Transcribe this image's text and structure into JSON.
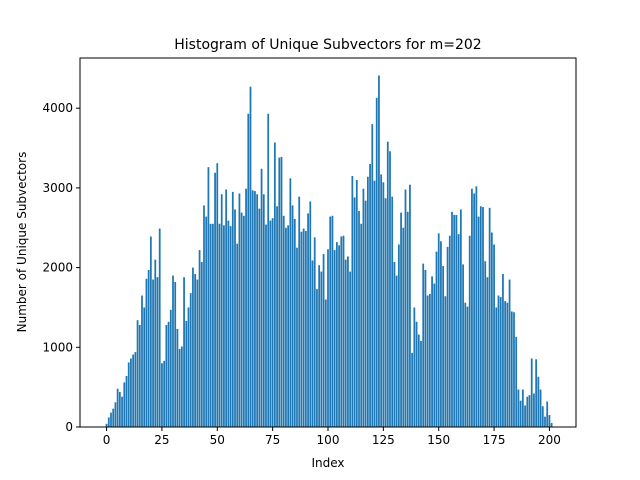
{
  "chart_data": {
    "type": "bar",
    "title": "Histogram of Unique Subvectors for m=202",
    "xlabel": "Index",
    "ylabel": "Number of Unique Subvectors",
    "xlim": [
      -12,
      212
    ],
    "ylim": [
      0,
      4630
    ],
    "xticks": [
      0,
      25,
      50,
      75,
      100,
      125,
      150,
      175,
      200
    ],
    "yticks": [
      0,
      1000,
      2000,
      3000,
      4000
    ],
    "grid": false,
    "legend": "none",
    "bar_color": "#1f77b4",
    "x_start": 0,
    "values": [
      40,
      120,
      180,
      230,
      310,
      480,
      440,
      380,
      560,
      640,
      810,
      860,
      910,
      940,
      1340,
      1280,
      1650,
      1500,
      1860,
      1970,
      2390,
      1850,
      2100,
      1880,
      2490,
      800,
      830,
      1280,
      1320,
      1470,
      1900,
      1820,
      1230,
      980,
      1010,
      1880,
      1330,
      1500,
      1680,
      2000,
      1920,
      1850,
      2220,
      2070,
      2780,
      2640,
      3260,
      2550,
      2550,
      3190,
      3310,
      2550,
      2920,
      2530,
      2980,
      2590,
      2520,
      2950,
      2730,
      2300,
      2930,
      2690,
      2650,
      2990,
      3930,
      4270,
      2970,
      2960,
      2920,
      2740,
      3240,
      2920,
      2540,
      3930,
      2590,
      2620,
      3570,
      2770,
      3380,
      3390,
      2650,
      2500,
      2530,
      3120,
      2780,
      2610,
      2250,
      2890,
      2450,
      2490,
      2460,
      2680,
      2830,
      2090,
      2380,
      1730,
      2030,
      1950,
      2170,
      1600,
      2230,
      2640,
      2650,
      2220,
      2320,
      2280,
      2390,
      2400,
      2100,
      2140,
      1950,
      3150,
      2880,
      3100,
      2710,
      2550,
      2990,
      2840,
      3140,
      3300,
      3800,
      3090,
      4130,
      4410,
      3170,
      3070,
      2870,
      3580,
      3460,
      2890,
      2070,
      1900,
      2290,
      2690,
      2500,
      2980,
      2700,
      3040,
      930,
      1500,
      1320,
      1160,
      1080,
      2050,
      1970,
      1650,
      1670,
      1890,
      1800,
      2200,
      2430,
      2330,
      2020,
      1640,
      2260,
      2400,
      2700,
      2660,
      2660,
      2420,
      2730,
      2040,
      1560,
      1510,
      2400,
      2990,
      2930,
      3020,
      2640,
      2770,
      2760,
      2080,
      1880,
      2750,
      2440,
      2290,
      1500,
      1650,
      1630,
      1920,
      1580,
      1560,
      1850,
      1450,
      1440,
      1130,
      470,
      330,
      470,
      270,
      380,
      400,
      860,
      420,
      850,
      630,
      470,
      260,
      130,
      320,
      150,
      50
    ]
  }
}
